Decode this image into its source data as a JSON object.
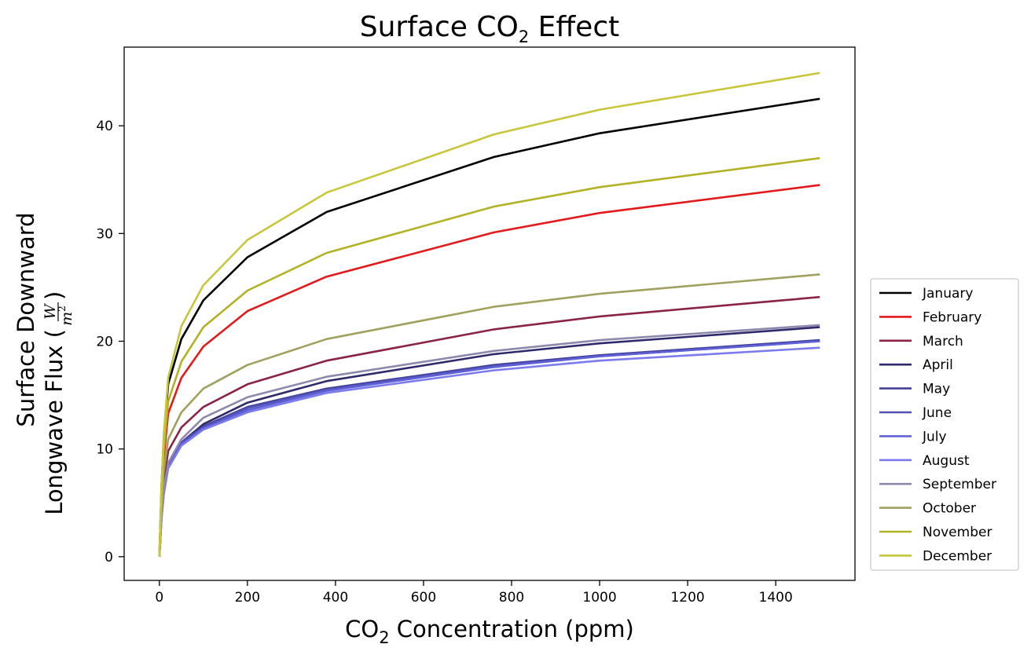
{
  "chart_data": {
    "type": "line",
    "title": "Surface CO₂ Effect",
    "title_main": "Surface CO",
    "title_sub": "2",
    "title_tail": " Effect",
    "xlabel": "CO₂ Concentration (ppm)",
    "xlabel_main": "CO",
    "xlabel_sub": "2",
    "xlabel_tail": " Concentration (ppm)",
    "ylabel": "Surface Downward Longwave Flux (W/m²)",
    "ylabel_line1": "Surface Downward",
    "ylabel_line2": "Longwave Flux (",
    "ylabel_unit_num": "W",
    "ylabel_unit_den": "m",
    "ylabel_unit_den_sup": "2",
    "ylabel_close": ")",
    "xlim": [
      -80,
      1580
    ],
    "ylim": [
      -2.2,
      47.3
    ],
    "xticks": [
      0,
      200,
      400,
      600,
      800,
      1000,
      1200,
      1400
    ],
    "yticks": [
      0,
      10,
      20,
      30,
      40
    ],
    "legend_position": "outside-right",
    "x": [
      0,
      5,
      10,
      20,
      50,
      100,
      200,
      380,
      760,
      1000,
      1500
    ],
    "series": [
      {
        "name": "January",
        "color": "#000000",
        "values": [
          0,
          6.7,
          11.0,
          16.0,
          20.2,
          23.8,
          27.8,
          32.0,
          37.1,
          39.3,
          42.5
        ]
      },
      {
        "name": "February",
        "color": "#e31a1c",
        "values": [
          0,
          5.5,
          9.2,
          13.3,
          16.6,
          19.5,
          22.8,
          26.0,
          30.1,
          31.9,
          34.5
        ]
      },
      {
        "name": "March",
        "color": "#8b2346",
        "values": [
          0,
          4.2,
          7.0,
          9.8,
          12.0,
          13.9,
          16.0,
          18.2,
          21.1,
          22.3,
          24.1
        ]
      },
      {
        "name": "April",
        "color": "#2e2a6b",
        "values": [
          0,
          3.9,
          6.3,
          8.6,
          10.6,
          12.3,
          14.3,
          16.3,
          18.8,
          19.8,
          21.3
        ]
      },
      {
        "name": "May",
        "color": "#43409a",
        "values": [
          0,
          3.7,
          5.9,
          8.4,
          10.6,
          12.1,
          13.9,
          15.6,
          17.8,
          18.7,
          20.1
        ]
      },
      {
        "name": "June",
        "color": "#5252b4",
        "values": [
          0,
          3.7,
          5.9,
          8.4,
          10.6,
          12.0,
          13.8,
          15.5,
          17.7,
          18.6,
          20.0
        ]
      },
      {
        "name": "July",
        "color": "#6060d6",
        "values": [
          0,
          3.6,
          5.8,
          8.3,
          10.4,
          11.9,
          13.6,
          15.4,
          17.6,
          18.6,
          20.0
        ]
      },
      {
        "name": "August",
        "color": "#7b7bee",
        "values": [
          0,
          3.6,
          5.8,
          8.2,
          10.3,
          11.8,
          13.4,
          15.2,
          17.3,
          18.2,
          19.4
        ]
      },
      {
        "name": "September",
        "color": "#8f88ad",
        "values": [
          0,
          3.9,
          6.2,
          8.7,
          10.9,
          12.9,
          14.8,
          16.7,
          19.1,
          20.1,
          21.5
        ]
      },
      {
        "name": "October",
        "color": "#a0a05f",
        "values": [
          0,
          4.5,
          7.9,
          10.9,
          13.4,
          15.6,
          17.8,
          20.2,
          23.2,
          24.4,
          26.2
        ]
      },
      {
        "name": "November",
        "color": "#b3b225",
        "values": [
          0,
          5.9,
          9.9,
          14.4,
          18.1,
          21.3,
          24.7,
          28.2,
          32.5,
          34.3,
          37.0
        ]
      },
      {
        "name": "December",
        "color": "#c8c63a",
        "values": [
          0,
          6.8,
          11.4,
          16.6,
          21.4,
          25.2,
          29.4,
          33.8,
          39.2,
          41.5,
          44.9
        ]
      }
    ]
  }
}
